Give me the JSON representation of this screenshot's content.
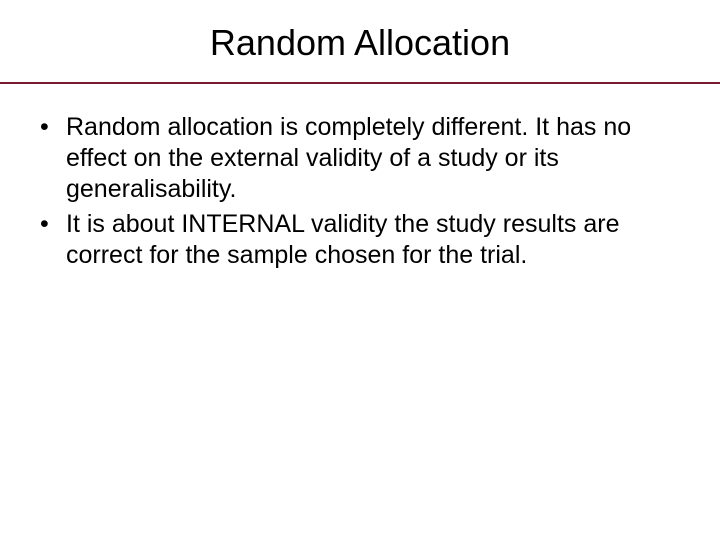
{
  "slide": {
    "title": "Random Allocation",
    "bullets": [
      "Random allocation is completely different. It has no effect on the external validity of a study or its generalisability.",
      "It is about INTERNAL validity the study results are correct for the sample chosen for the trial."
    ]
  },
  "style": {
    "background_color": "#ffffff",
    "divider_color": "#7a1a32",
    "title_fontsize": 36,
    "body_fontsize": 25,
    "text_color": "#000000",
    "font_family": "Arial"
  }
}
